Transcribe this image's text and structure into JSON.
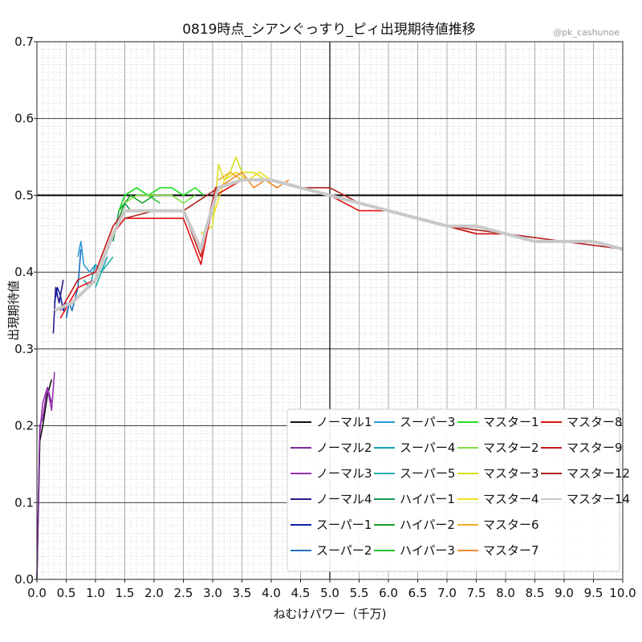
{
  "chart_data": {
    "type": "line",
    "title": "0819時点_シアンぐっすり_ピィ出現期待値推移",
    "watermark": "@pk_cashunoe",
    "xlabel": "ねむけパワー（千万)",
    "ylabel": "出現期待値",
    "xlim": [
      0,
      10
    ],
    "ylim": [
      0,
      0.7
    ],
    "x_ticks": [
      "0.0",
      "0.5",
      "1.0",
      "1.5",
      "2.0",
      "2.5",
      "3.0",
      "3.5",
      "4.0",
      "4.5",
      "5.0",
      "5.5",
      "6.0",
      "6.5",
      "7.0",
      "7.5",
      "8.0",
      "8.5",
      "9.0",
      "9.5",
      "10.0"
    ],
    "y_ticks": [
      "0.0",
      "0.1",
      "0.2",
      "0.3",
      "0.4",
      "0.5",
      "0.6",
      "0.7"
    ],
    "reference_lines": [
      {
        "axis": "y",
        "value": 0.5
      },
      {
        "axis": "x",
        "value": 5.0
      }
    ],
    "grid": true,
    "legend_position": "lower-right",
    "series": [
      {
        "name": "ノーマル1",
        "color": "#111111",
        "x": [
          0.0,
          0.05,
          0.1,
          0.18,
          0.25
        ],
        "y": [
          0.0,
          0.18,
          0.2,
          0.24,
          0.26
        ]
      },
      {
        "name": "ノーマル2",
        "color": "#7d2a9a",
        "x": [
          0.0,
          0.05,
          0.1,
          0.18,
          0.25
        ],
        "y": [
          0.0,
          0.2,
          0.21,
          0.25,
          0.23
        ]
      },
      {
        "name": "ノーマル3",
        "color": "#9a30b0",
        "x": [
          0.05,
          0.1,
          0.18,
          0.25,
          0.3
        ],
        "y": [
          0.19,
          0.23,
          0.25,
          0.22,
          0.27
        ]
      },
      {
        "name": "ノーマル4",
        "color": "#2a1a8a",
        "x": [
          0.28,
          0.32,
          0.38,
          0.45
        ],
        "y": [
          0.32,
          0.38,
          0.36,
          0.39
        ]
      },
      {
        "name": "スーパー1",
        "color": "#1020a0",
        "x": [
          0.3,
          0.35,
          0.4,
          0.45,
          0.5
        ],
        "y": [
          0.36,
          0.38,
          0.37,
          0.35,
          0.36
        ]
      },
      {
        "name": "スーパー2",
        "color": "#1f6fc0",
        "x": [
          0.5,
          0.55,
          0.6,
          0.7,
          0.75
        ],
        "y": [
          0.34,
          0.36,
          0.35,
          0.38,
          0.43
        ]
      },
      {
        "name": "スーパー3",
        "color": "#2a9ad8",
        "x": [
          0.7,
          0.75,
          0.8,
          0.9,
          1.0
        ],
        "y": [
          0.42,
          0.44,
          0.41,
          0.4,
          0.41
        ]
      },
      {
        "name": "スーパー4",
        "color": "#18a0b8",
        "x": [
          0.8,
          0.9,
          1.0,
          1.1,
          1.2
        ],
        "y": [
          0.39,
          0.38,
          0.41,
          0.4,
          0.42
        ]
      },
      {
        "name": "スーパー5",
        "color": "#1fb0a8",
        "x": [
          1.0,
          1.1,
          1.2,
          1.3
        ],
        "y": [
          0.38,
          0.4,
          0.41,
          0.42
        ]
      },
      {
        "name": "ハイパー1",
        "color": "#1a9a50",
        "x": [
          1.3,
          1.35,
          1.4,
          1.5,
          1.6
        ],
        "y": [
          0.44,
          0.46,
          0.48,
          0.49,
          0.48
        ]
      },
      {
        "name": "ハイパー2",
        "color": "#1aa020",
        "x": [
          1.4,
          1.5,
          1.6,
          1.8,
          2.0
        ],
        "y": [
          0.47,
          0.49,
          0.5,
          0.49,
          0.5
        ]
      },
      {
        "name": "ハイパー3",
        "color": "#2ac02a",
        "x": [
          1.4,
          1.5,
          1.7,
          1.9,
          2.1
        ],
        "y": [
          0.48,
          0.5,
          0.51,
          0.5,
          0.49
        ]
      },
      {
        "name": "マスター1",
        "color": "#22e022",
        "x": [
          1.4,
          1.5,
          1.7,
          1.9,
          2.1,
          2.3,
          2.5,
          2.7,
          2.85
        ],
        "y": [
          0.48,
          0.5,
          0.51,
          0.5,
          0.51,
          0.51,
          0.5,
          0.51,
          0.5
        ]
      },
      {
        "name": "マスター2",
        "color": "#80e040",
        "x": [
          1.5,
          1.7,
          1.9,
          2.1,
          2.3,
          2.5,
          2.7
        ],
        "y": [
          0.49,
          0.5,
          0.5,
          0.5,
          0.5,
          0.49,
          0.5
        ]
      },
      {
        "name": "マスター3",
        "color": "#d8e020",
        "x": [
          2.8,
          3.0,
          3.1,
          3.2,
          3.3,
          3.4,
          3.5,
          3.7,
          3.9
        ],
        "y": [
          0.45,
          0.46,
          0.54,
          0.52,
          0.53,
          0.55,
          0.53,
          0.53,
          0.52
        ]
      },
      {
        "name": "マスター4",
        "color": "#f0e020",
        "x": [
          3.0,
          3.2,
          3.4,
          3.6,
          3.8,
          4.0
        ],
        "y": [
          0.47,
          0.52,
          0.53,
          0.52,
          0.53,
          0.52
        ]
      },
      {
        "name": "マスター6",
        "color": "#f0b020",
        "x": [
          3.1,
          3.3,
          3.5,
          3.7,
          3.9,
          4.1
        ],
        "y": [
          0.52,
          0.53,
          0.52,
          0.52,
          0.52,
          0.51
        ]
      },
      {
        "name": "マスター7",
        "color": "#f08a30",
        "x": [
          3.1,
          3.3,
          3.5,
          3.7,
          3.9,
          4.1,
          4.3
        ],
        "y": [
          0.51,
          0.52,
          0.53,
          0.51,
          0.52,
          0.51,
          0.52
        ]
      },
      {
        "name": "マスター8",
        "color": "#e01010",
        "x": [
          0.4,
          0.7,
          1.0,
          1.3,
          1.5,
          2.0,
          2.5,
          2.8,
          2.9,
          3.05,
          3.5,
          4.0,
          4.5,
          5.0,
          5.5,
          6.0,
          6.5,
          7.0,
          7.5,
          8.0,
          8.5,
          9.0,
          9.5,
          10.0
        ],
        "y": [
          0.34,
          0.38,
          0.39,
          0.45,
          0.47,
          0.47,
          0.47,
          0.41,
          0.45,
          0.5,
          0.52,
          0.52,
          0.51,
          0.5,
          0.48,
          0.48,
          0.47,
          0.46,
          0.45,
          0.45,
          0.44,
          0.44,
          0.44,
          0.43
        ]
      },
      {
        "name": "マスター9",
        "color": "#c81818",
        "x": [
          0.4,
          0.7,
          1.0,
          1.3,
          1.5,
          2.0,
          2.5,
          2.8,
          2.9,
          3.05,
          3.5,
          4.0,
          4.5,
          5.0,
          5.5,
          6.0,
          6.5,
          7.0,
          7.5,
          8.0,
          8.5,
          9.0,
          9.5,
          10.0
        ],
        "y": [
          0.35,
          0.39,
          0.4,
          0.46,
          0.48,
          0.48,
          0.48,
          0.42,
          0.46,
          0.51,
          0.52,
          0.52,
          0.51,
          0.5,
          0.49,
          0.48,
          0.47,
          0.46,
          0.45,
          0.45,
          0.44,
          0.44,
          0.44,
          0.43
        ]
      },
      {
        "name": "マスター12",
        "color": "#b02020",
        "x": [
          1.5,
          2.0,
          2.5,
          3.1,
          3.5,
          4.0,
          4.5,
          5.0,
          5.5,
          6.0,
          7.0,
          8.0,
          9.0,
          10.0
        ],
        "y": [
          0.47,
          0.48,
          0.48,
          0.51,
          0.52,
          0.52,
          0.51,
          0.51,
          0.49,
          0.48,
          0.46,
          0.45,
          0.44,
          0.43
        ]
      },
      {
        "name": "マスター14",
        "color": "#c8c8c8",
        "x": [
          0.3,
          0.6,
          1.0,
          1.3,
          1.5,
          2.0,
          2.5,
          2.8,
          2.9,
          3.1,
          3.5,
          4.0,
          4.5,
          5.0,
          5.5,
          6.0,
          6.5,
          7.0,
          7.5,
          8.0,
          8.5,
          9.0,
          9.5,
          10.0
        ],
        "y": [
          0.35,
          0.36,
          0.39,
          0.45,
          0.48,
          0.48,
          0.48,
          0.43,
          0.46,
          0.51,
          0.52,
          0.52,
          0.51,
          0.5,
          0.49,
          0.48,
          0.47,
          0.46,
          0.46,
          0.45,
          0.44,
          0.44,
          0.44,
          0.43
        ]
      }
    ]
  }
}
